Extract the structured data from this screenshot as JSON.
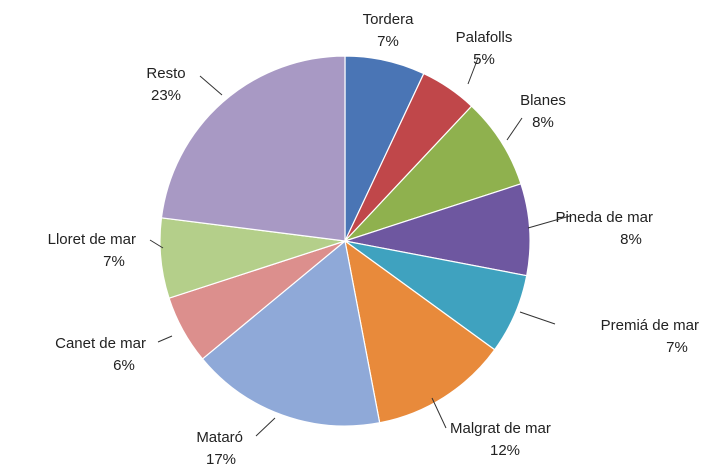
{
  "chart_data": {
    "type": "pie",
    "title": "",
    "start_angle_deg": 0,
    "direction": "clockwise",
    "slices": [
      {
        "label": "Tordera",
        "value": 7,
        "pct_label": "7%",
        "color": "#4a75b5"
      },
      {
        "label": "Palafolls",
        "value": 5,
        "pct_label": "5%",
        "color": "#c0474a"
      },
      {
        "label": "Blanes",
        "value": 8,
        "pct_label": "8%",
        "color": "#8fb14e"
      },
      {
        "label": "Pineda de mar",
        "value": 8,
        "pct_label": "8%",
        "color": "#6e57a0"
      },
      {
        "label": "Premiá de mar",
        "value": 7,
        "pct_label": "7%",
        "color": "#3fa2bf"
      },
      {
        "label": "Malgrat de mar",
        "value": 12,
        "pct_label": "12%",
        "color": "#e88a3b"
      },
      {
        "label": "Mataró",
        "value": 17,
        "pct_label": "17%",
        "color": "#8fa9d8"
      },
      {
        "label": "Canet de mar",
        "value": 6,
        "pct_label": "6%",
        "color": "#dc8f8d"
      },
      {
        "label": "Lloret de mar",
        "value": 7,
        "pct_label": "7%",
        "color": "#b4cf8a"
      },
      {
        "label": "Resto",
        "value": 23,
        "pct_label": "23%",
        "color": "#a899c4"
      }
    ]
  }
}
